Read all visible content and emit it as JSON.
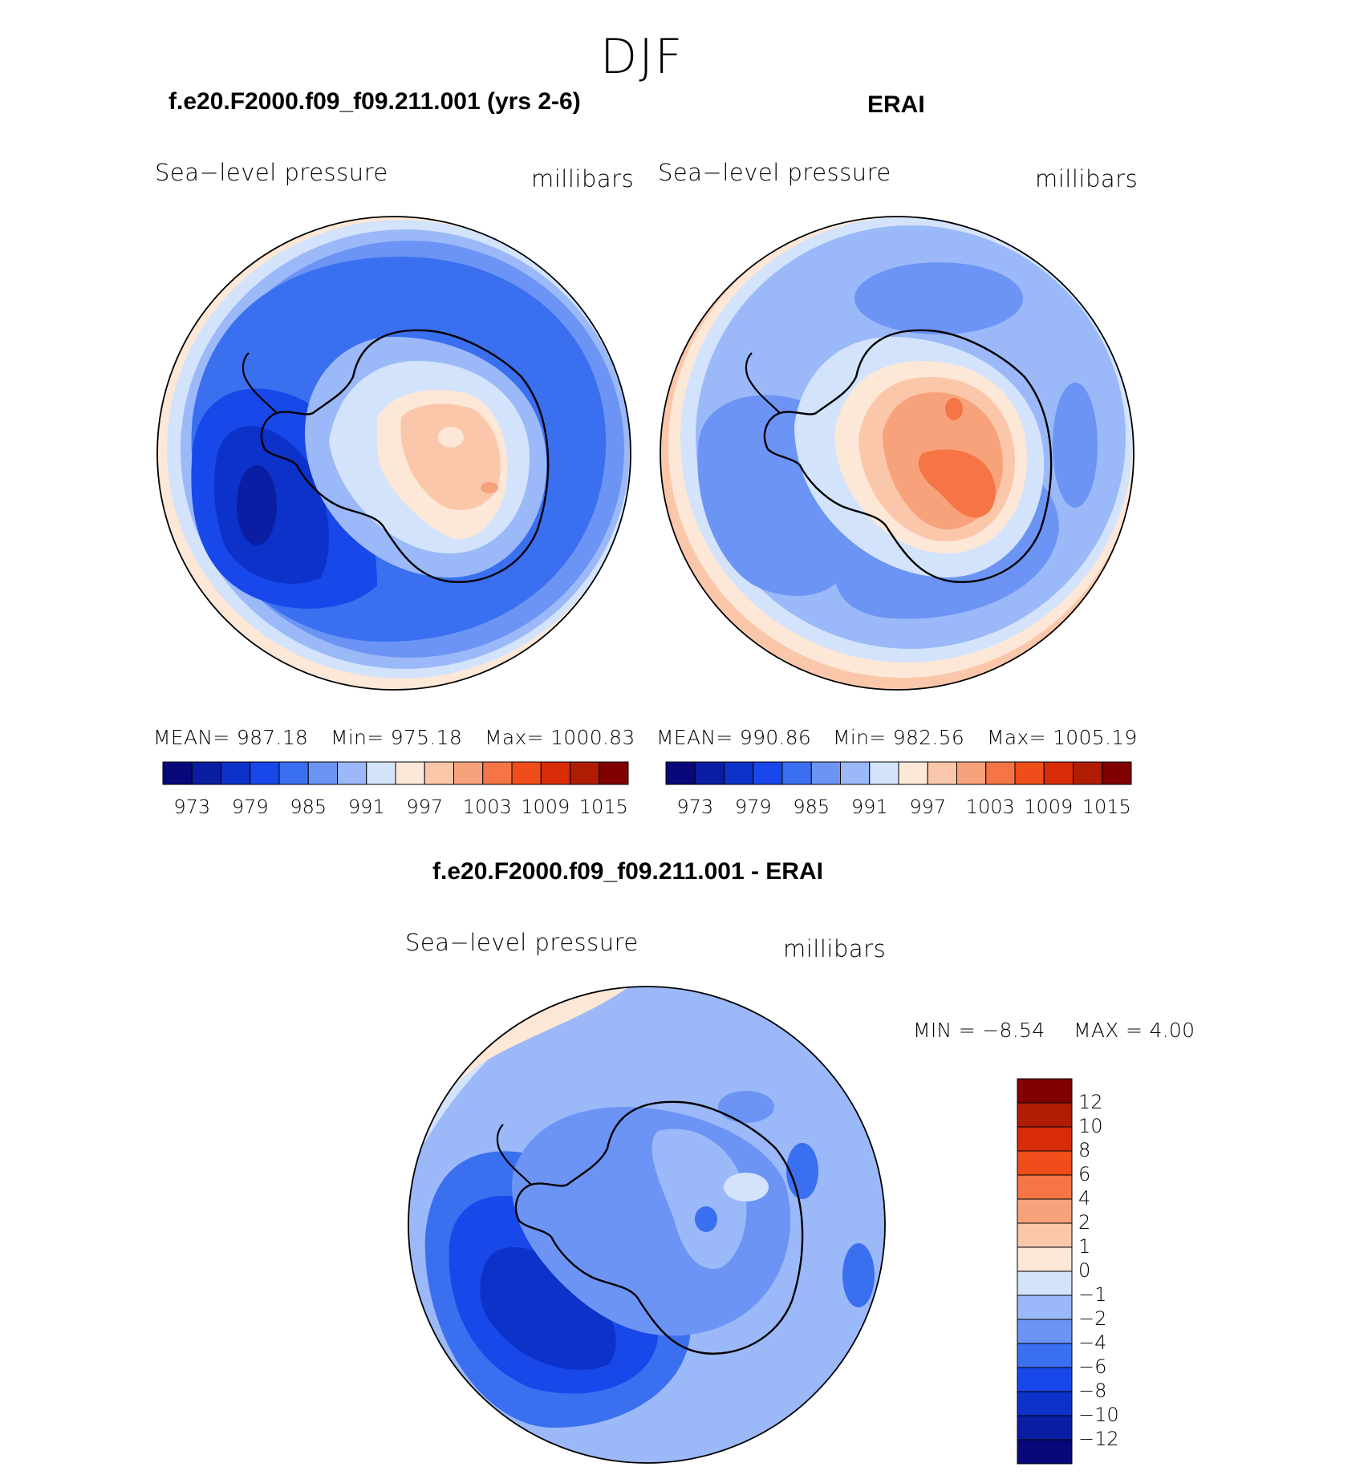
{
  "figure": {
    "season": "DJF"
  },
  "panels": [
    {
      "title": "f.e20.F2000.f09_f09.211.001 (yrs 2-6)",
      "left_label": "Sea−level pressure",
      "right_label": "millibars",
      "stats": {
        "mean": "MEAN=  987.18",
        "min": "Min=  975.18",
        "max": "Max=  1000.83"
      }
    },
    {
      "title": "ERAI",
      "left_label": "Sea−level pressure",
      "right_label": "millibars",
      "stats": {
        "mean": "MEAN=  990.86",
        "min": "Min=  982.56",
        "max": "Max=  1005.19"
      }
    },
    {
      "title": "f.e20.F2000.f09_f09.211.001 - ERAI",
      "left_label": "Sea−level pressure",
      "right_label": "millibars",
      "stats": {
        "min": "MIN  =    −8.54",
        "max": "MAX  =      4.00"
      }
    }
  ],
  "colorbars": {
    "abs": {
      "colors": [
        "#08087a",
        "#0a1ea3",
        "#0d32c9",
        "#1848ea",
        "#3a6ff0",
        "#6b94f5",
        "#9bb8f8",
        "#d2e3fb",
        "#fde7d7",
        "#fbc7aa",
        "#f8a27c",
        "#f57546",
        "#ef4d1a",
        "#d72c05",
        "#b01d04",
        "#800000"
      ],
      "tick_labels": [
        "973",
        "979",
        "985",
        "991",
        "997",
        "1003",
        "1009",
        "1015"
      ]
    },
    "diff": {
      "colors": [
        "#800000",
        "#b01d04",
        "#d72c05",
        "#ef4d1a",
        "#f57546",
        "#f8a27c",
        "#fbc7aa",
        "#fde7d7",
        "#d2e3fb",
        "#9bb8f8",
        "#6b94f5",
        "#3a6ff0",
        "#1848ea",
        "#0d32c9",
        "#0a1ea3",
        "#08087a"
      ],
      "tick_labels": [
        "12",
        "10",
        "8",
        "6",
        "4",
        "2",
        "1",
        "0",
        "−1",
        "−2",
        "−4",
        "−6",
        "−8",
        "−10",
        "−12"
      ]
    }
  },
  "map_palette": {
    "pale_red": "#fde7d7",
    "light_red": "#fbc7aa",
    "red": "#f8a27c",
    "strong_red": "#f57546",
    "pale_blue": "#d2e3fb",
    "light_blue": "#9bb8f8",
    "blue": "#6b94f5",
    "mid_blue": "#3a6ff0",
    "deep_blue": "#1848ea",
    "navy_blue": "#0d32c9",
    "darkest_blue": "#0a1ea3"
  }
}
